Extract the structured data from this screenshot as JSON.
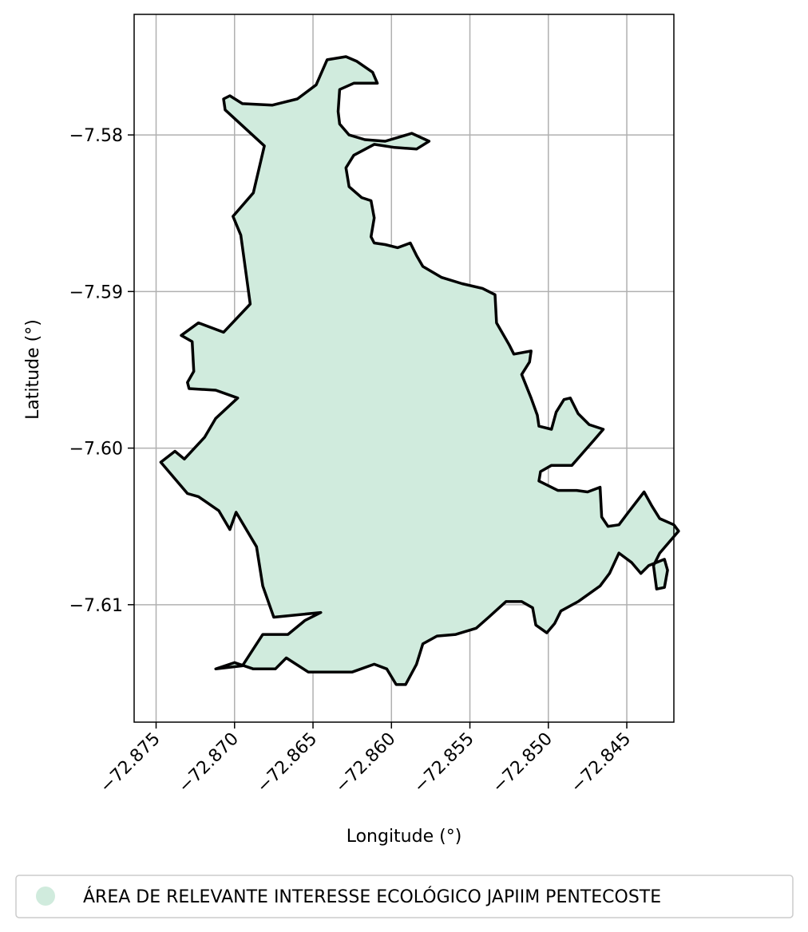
{
  "chart_data": {
    "type": "map",
    "xlabel": "Longitude (°)",
    "ylabel": "Latitude (°)",
    "xlim": [
      -72.8764,
      -72.842
    ],
    "ylim": [
      -7.6175,
      -7.5723
    ],
    "grid": true,
    "x_ticks": [
      {
        "value": -72.875,
        "label": "−72.875"
      },
      {
        "value": -72.87,
        "label": "−72.870"
      },
      {
        "value": -72.865,
        "label": "−72.865"
      },
      {
        "value": -72.86,
        "label": "−72.860"
      },
      {
        "value": -72.855,
        "label": "−72.855"
      },
      {
        "value": -72.85,
        "label": "−72.850"
      },
      {
        "value": -72.845,
        "label": "−72.845"
      }
    ],
    "y_ticks": [
      {
        "value": -7.58,
        "label": "−7.58"
      },
      {
        "value": -7.59,
        "label": "−7.59"
      },
      {
        "value": -7.6,
        "label": "−7.60"
      },
      {
        "value": -7.61,
        "label": "−7.61"
      }
    ],
    "legend": {
      "placement": "bottom",
      "entries": [
        {
          "label": "ÁREA DE RELEVANTE INTERESSE ECOLÓGICO JAPIIM PENTECOSTE",
          "color": "#d0ebdd"
        }
      ]
    },
    "polygon": {
      "fill": "#d0ebdd",
      "stroke": "#000000",
      "coordinates": [
        [
          -72.8641,
          -7.5752
        ],
        [
          -72.8629,
          -7.575
        ],
        [
          -72.8622,
          -7.5753
        ],
        [
          -72.8612,
          -7.576
        ],
        [
          -72.8609,
          -7.5767
        ],
        [
          -72.8624,
          -7.5767
        ],
        [
          -72.8633,
          -7.5771
        ],
        [
          -72.8634,
          -7.5785
        ],
        [
          -72.8633,
          -7.5793
        ],
        [
          -72.8627,
          -7.58
        ],
        [
          -72.8617,
          -7.5803
        ],
        [
          -72.8604,
          -7.5804
        ],
        [
          -72.8587,
          -7.5799
        ],
        [
          -72.8576,
          -7.5804
        ],
        [
          -72.8584,
          -7.5809
        ],
        [
          -72.8598,
          -7.5808
        ],
        [
          -72.8611,
          -7.5806
        ],
        [
          -72.8624,
          -7.5813
        ],
        [
          -72.8629,
          -7.5821
        ],
        [
          -72.8627,
          -7.5833
        ],
        [
          -72.8619,
          -7.584
        ],
        [
          -72.8613,
          -7.5842
        ],
        [
          -72.8611,
          -7.5853
        ],
        [
          -72.8613,
          -7.5865
        ],
        [
          -72.8611,
          -7.5869
        ],
        [
          -72.8604,
          -7.587
        ],
        [
          -72.8596,
          -7.5872
        ],
        [
          -72.8588,
          -7.5869
        ],
        [
          -72.8584,
          -7.5877
        ],
        [
          -72.858,
          -7.5884
        ],
        [
          -72.8568,
          -7.5891
        ],
        [
          -72.8555,
          -7.5895
        ],
        [
          -72.8542,
          -7.5898
        ],
        [
          -72.8534,
          -7.5902
        ],
        [
          -72.8533,
          -7.592
        ],
        [
          -72.8525,
          -7.5934
        ],
        [
          -72.8522,
          -7.594
        ],
        [
          -72.8511,
          -7.5938
        ],
        [
          -72.8512,
          -7.5945
        ],
        [
          -72.8517,
          -7.5953
        ],
        [
          -72.8511,
          -7.5968
        ],
        [
          -72.8507,
          -7.5979
        ],
        [
          -72.8506,
          -7.5986
        ],
        [
          -72.8498,
          -7.5988
        ],
        [
          -72.8495,
          -7.5977
        ],
        [
          -72.849,
          -7.5969
        ],
        [
          -72.8486,
          -7.5968
        ],
        [
          -72.8481,
          -7.5978
        ],
        [
          -72.8474,
          -7.5985
        ],
        [
          -72.8465,
          -7.5988
        ],
        [
          -72.8471,
          -7.5995
        ],
        [
          -72.8478,
          -7.6003
        ],
        [
          -72.8485,
          -7.6011
        ],
        [
          -72.8498,
          -7.6011
        ],
        [
          -72.8505,
          -7.6015
        ],
        [
          -72.8506,
          -7.6021
        ],
        [
          -72.8494,
          -7.6027
        ],
        [
          -72.8482,
          -7.6027
        ],
        [
          -72.8475,
          -7.6028
        ],
        [
          -72.8467,
          -7.6025
        ],
        [
          -72.8466,
          -7.6044
        ],
        [
          -72.8462,
          -7.605
        ],
        [
          -72.8455,
          -7.6049
        ],
        [
          -72.8449,
          -7.6041
        ],
        [
          -72.8439,
          -7.6028
        ],
        [
          -72.8434,
          -7.6037
        ],
        [
          -72.8429,
          -7.6045
        ],
        [
          -72.842,
          -7.6049
        ],
        [
          -72.8417,
          -7.6053
        ],
        [
          -72.8429,
          -7.6067
        ],
        [
          -72.8433,
          -7.6075
        ],
        [
          -72.8431,
          -7.609
        ],
        [
          -72.8426,
          -7.6089
        ],
        [
          -72.8424,
          -7.6078
        ],
        [
          -72.8426,
          -7.6071
        ],
        [
          -72.8436,
          -7.6075
        ],
        [
          -72.8441,
          -7.608
        ],
        [
          -72.8447,
          -7.6073
        ],
        [
          -72.8455,
          -7.6067
        ],
        [
          -72.8461,
          -7.608
        ],
        [
          -72.8467,
          -7.6088
        ],
        [
          -72.8481,
          -7.6098
        ],
        [
          -72.8492,
          -7.6104
        ],
        [
          -72.8496,
          -7.6112
        ],
        [
          -72.8501,
          -7.6118
        ],
        [
          -72.8508,
          -7.6113
        ],
        [
          -72.851,
          -7.6102
        ],
        [
          -72.8517,
          -7.6098
        ],
        [
          -72.8527,
          -7.6098
        ],
        [
          -72.8538,
          -7.6108
        ],
        [
          -72.8546,
          -7.6115
        ],
        [
          -72.8559,
          -7.6119
        ],
        [
          -72.8571,
          -7.612
        ],
        [
          -72.858,
          -7.6125
        ],
        [
          -72.8584,
          -7.6138
        ],
        [
          -72.8591,
          -7.6151
        ],
        [
          -72.8597,
          -7.6151
        ],
        [
          -72.8603,
          -7.6141
        ],
        [
          -72.8611,
          -7.6138
        ],
        [
          -72.8625,
          -7.6143
        ],
        [
          -72.864,
          -7.6143
        ],
        [
          -72.8653,
          -7.6143
        ],
        [
          -72.8667,
          -7.6134
        ],
        [
          -72.8674,
          -7.6141
        ],
        [
          -72.8688,
          -7.6141
        ],
        [
          -72.87,
          -7.6137
        ],
        [
          -72.8712,
          -7.6141
        ],
        [
          -72.8695,
          -7.6139
        ],
        [
          -72.8682,
          -7.6119
        ],
        [
          -72.8666,
          -7.6119
        ],
        [
          -72.8655,
          -7.611
        ],
        [
          -72.8645,
          -7.6105
        ],
        [
          -72.8675,
          -7.6108
        ],
        [
          -72.8682,
          -7.6088
        ],
        [
          -72.8686,
          -7.6063
        ],
        [
          -72.8699,
          -7.6041
        ],
        [
          -72.8703,
          -7.6052
        ],
        [
          -72.871,
          -7.604
        ],
        [
          -72.8723,
          -7.6031
        ],
        [
          -72.873,
          -7.6029
        ],
        [
          -72.8747,
          -7.6009
        ],
        [
          -72.8738,
          -7.6002
        ],
        [
          -72.8732,
          -7.6007
        ],
        [
          -72.8719,
          -7.5993
        ],
        [
          -72.8712,
          -7.5981
        ],
        [
          -72.8698,
          -7.5968
        ],
        [
          -72.8712,
          -7.5963
        ],
        [
          -72.8729,
          -7.5962
        ],
        [
          -72.873,
          -7.5958
        ],
        [
          -72.8726,
          -7.5951
        ],
        [
          -72.8727,
          -7.5932
        ],
        [
          -72.8734,
          -7.5928
        ],
        [
          -72.8723,
          -7.592
        ],
        [
          -72.8707,
          -7.5926
        ],
        [
          -72.869,
          -7.5908
        ],
        [
          -72.8696,
          -7.5864
        ],
        [
          -72.8701,
          -7.5852
        ],
        [
          -72.8688,
          -7.5837
        ],
        [
          -72.8681,
          -7.5807
        ],
        [
          -72.8706,
          -7.5784
        ],
        [
          -72.8707,
          -7.5777
        ],
        [
          -72.8703,
          -7.5775
        ],
        [
          -72.8695,
          -7.578
        ],
        [
          -72.8676,
          -7.5781
        ],
        [
          -72.866,
          -7.5777
        ],
        [
          -72.8648,
          -7.5768
        ],
        [
          -72.8641,
          -7.5752
        ]
      ]
    }
  }
}
